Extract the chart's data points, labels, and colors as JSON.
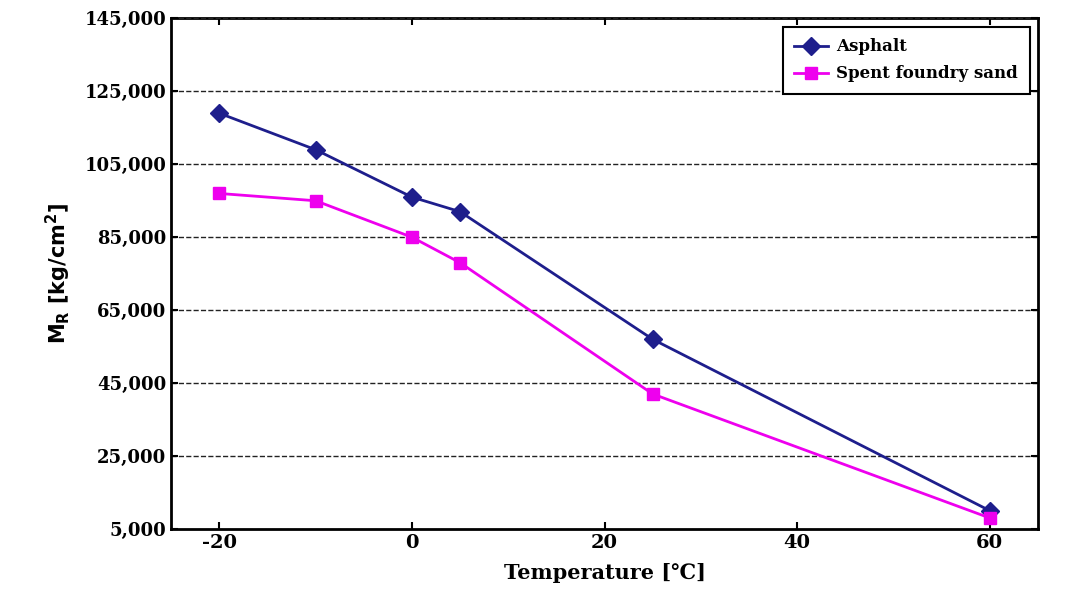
{
  "asphalt_x": [
    -20,
    -10,
    0,
    5,
    25,
    60
  ],
  "asphalt_y": [
    119000,
    109000,
    96000,
    92000,
    57000,
    10000
  ],
  "sfs_x": [
    -20,
    -10,
    0,
    5,
    25,
    60
  ],
  "sfs_y": [
    97000,
    95000,
    85000,
    78000,
    42000,
    8000
  ],
  "asphalt_color": "#1e1e8c",
  "sfs_color": "#ee00ee",
  "xlabel": "Temperature [℃]",
  "ylabel_top": "M",
  "legend_asphalt": "Asphalt",
  "legend_sfs": "Spent foundry sand",
  "xlim": [
    -25,
    65
  ],
  "ylim": [
    5000,
    145000
  ],
  "xticks": [
    -20,
    0,
    20,
    40,
    60
  ],
  "xtick_labels": [
    "-20",
    "0",
    "20",
    "40",
    "60"
  ],
  "yticks": [
    5000,
    25000,
    45000,
    65000,
    85000,
    105000,
    125000,
    145000
  ],
  "ytick_labels": [
    "5,000",
    "25,000",
    "45,000",
    "65,000",
    "85,000",
    "105,000",
    "125,000",
    "145,000"
  ],
  "grid_color": "#222222",
  "background_color": "#ffffff"
}
